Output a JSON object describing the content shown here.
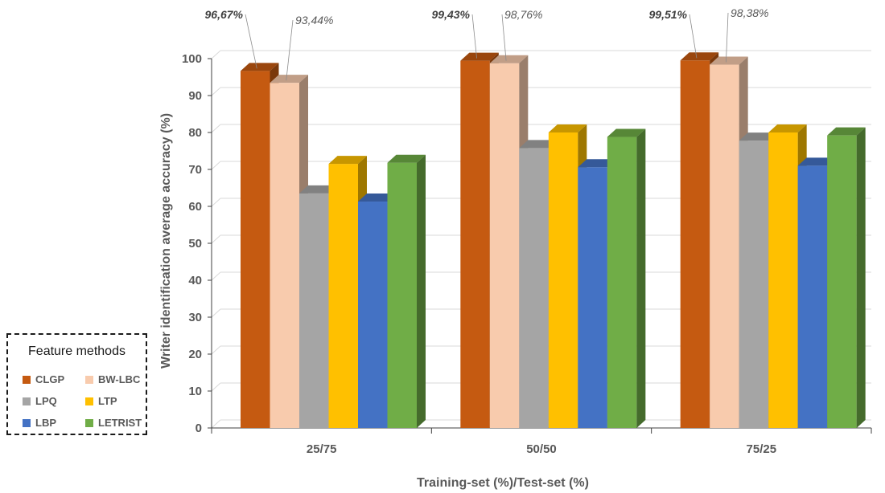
{
  "chart_data": {
    "type": "bar",
    "xlabel": "Training-set (%)/Test-set (%)",
    "ylabel": "Writer identification average accuracy (%)",
    "ylim": [
      0,
      100
    ],
    "yticks": [
      "0",
      "10",
      "20",
      "30",
      "40",
      "50",
      "60",
      "70",
      "80",
      "90",
      "100"
    ],
    "categories": [
      "25/75",
      "50/50",
      "75/25"
    ],
    "grid": true,
    "legend_position": "bottom-left",
    "legend_title": "Feature methods",
    "series": [
      {
        "name": "CLGP",
        "color": "#c55a11",
        "values": [
          96.67,
          99.43,
          99.51
        ]
      },
      {
        "name": "BW-LBC",
        "color": "#f8cbad",
        "values": [
          93.44,
          98.76,
          98.38
        ]
      },
      {
        "name": "LPQ",
        "color": "#a5a5a5",
        "values": [
          63.5,
          75.8,
          77.8
        ]
      },
      {
        "name": "LTP",
        "color": "#ffc000",
        "values": [
          71.5,
          80.0,
          80.0
        ]
      },
      {
        "name": "LBP",
        "color": "#4472c4",
        "values": [
          61.3,
          70.6,
          71.0
        ]
      },
      {
        "name": "LETRIST",
        "color": "#70ad47",
        "values": [
          71.8,
          78.8,
          79.2
        ]
      }
    ],
    "annotations": [
      {
        "text": "96,67%",
        "bold": true
      },
      {
        "text": "93,44%",
        "bold": false
      },
      {
        "text": "99,43%",
        "bold": true
      },
      {
        "text": "98,76%",
        "bold": false
      },
      {
        "text": "99,51%",
        "bold": true
      },
      {
        "text": "98,38%",
        "bold": false
      }
    ]
  }
}
